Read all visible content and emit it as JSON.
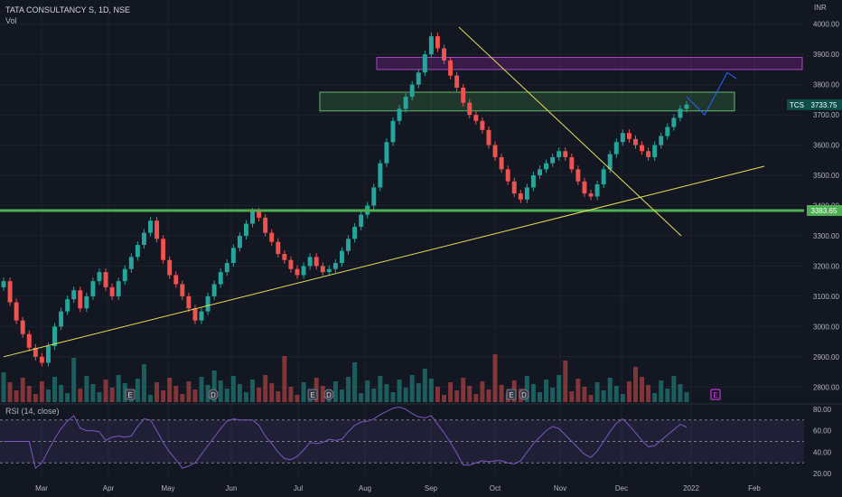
{
  "header": {
    "symbol_line": "TATA CONSULTANCY S, 1D, NSE",
    "volume_label": "Vol",
    "currency": "INR"
  },
  "rsi": {
    "label": "RSI (14, close)",
    "levels": [
      30,
      50,
      70
    ],
    "ticks": [
      "80.00",
      "60.00",
      "40.00",
      "20.00"
    ]
  },
  "colors": {
    "bg": "#131722",
    "up": "#26a69a",
    "down": "#ef5350",
    "line_green": "#4caf50",
    "trend_yellow": "#e6e05a",
    "zone_green": "#4caf50",
    "zone_purple": "#9c27b0",
    "projection": "#2962ff",
    "rsi_line": "#7e57c2"
  },
  "chart_data": {
    "type": "candlestick",
    "title": "TATA CONSULTANCY S, 1D, NSE",
    "ylim": [
      2750,
      4050
    ],
    "y_ticks": [
      "4000.00",
      "3900.00",
      "3800.00",
      "3700.00",
      "3600.00",
      "3500.00",
      "3400.00",
      "3300.00",
      "3200.00",
      "3100.00",
      "3000.00",
      "2900.00",
      "2800.00"
    ],
    "x_labels": [
      "Mar",
      "Apr",
      "May",
      "Jun",
      "Jul",
      "Aug",
      "Sep",
      "Oct",
      "Nov",
      "Dec",
      "2022",
      "Feb"
    ],
    "price_labels": [
      {
        "symbol": "TCS",
        "value": "3733.75"
      },
      {
        "value": "3383.65"
      }
    ],
    "horizontal_line": 3383.65,
    "zones": [
      {
        "name": "purple",
        "from": 3850,
        "to": 3890
      },
      {
        "name": "green",
        "from": 3713,
        "to": 3775
      }
    ],
    "event_markers": [
      {
        "text": "E",
        "type": "earnings",
        "month": "Apr"
      },
      {
        "text": "D",
        "type": "dividend",
        "month": "May"
      },
      {
        "text": "E",
        "type": "earnings",
        "month": "Jul"
      },
      {
        "text": "D",
        "type": "dividend",
        "month": "Jul"
      },
      {
        "text": "E",
        "type": "earnings",
        "month": "Oct"
      },
      {
        "text": "D",
        "type": "dividend",
        "month": "Oct"
      },
      {
        "text": "E",
        "type": "earnings",
        "month": "Jan"
      }
    ],
    "closes": [
      3150,
      3080,
      3020,
      2975,
      2930,
      2900,
      2880,
      2935,
      3000,
      3050,
      3090,
      3120,
      3060,
      3100,
      3150,
      3180,
      3130,
      3100,
      3150,
      3190,
      3230,
      3270,
      3310,
      3350,
      3290,
      3220,
      3170,
      3140,
      3100,
      3060,
      3020,
      3050,
      3100,
      3140,
      3180,
      3210,
      3260,
      3300,
      3340,
      3380,
      3360,
      3310,
      3280,
      3240,
      3220,
      3190,
      3170,
      3200,
      3230,
      3200,
      3180,
      3190,
      3210,
      3250,
      3290,
      3330,
      3370,
      3400,
      3460,
      3540,
      3610,
      3680,
      3720,
      3760,
      3800,
      3840,
      3900,
      3960,
      3920,
      3880,
      3830,
      3790,
      3740,
      3700,
      3680,
      3650,
      3600,
      3560,
      3520,
      3480,
      3440,
      3420,
      3460,
      3500,
      3520,
      3540,
      3560,
      3580,
      3560,
      3520,
      3480,
      3440,
      3430,
      3470,
      3520,
      3570,
      3610,
      3640,
      3620,
      3600,
      3580,
      3560,
      3600,
      3630,
      3660,
      3690,
      3720,
      3734
    ],
    "volume_scale": [
      0.3,
      0.9
    ]
  }
}
